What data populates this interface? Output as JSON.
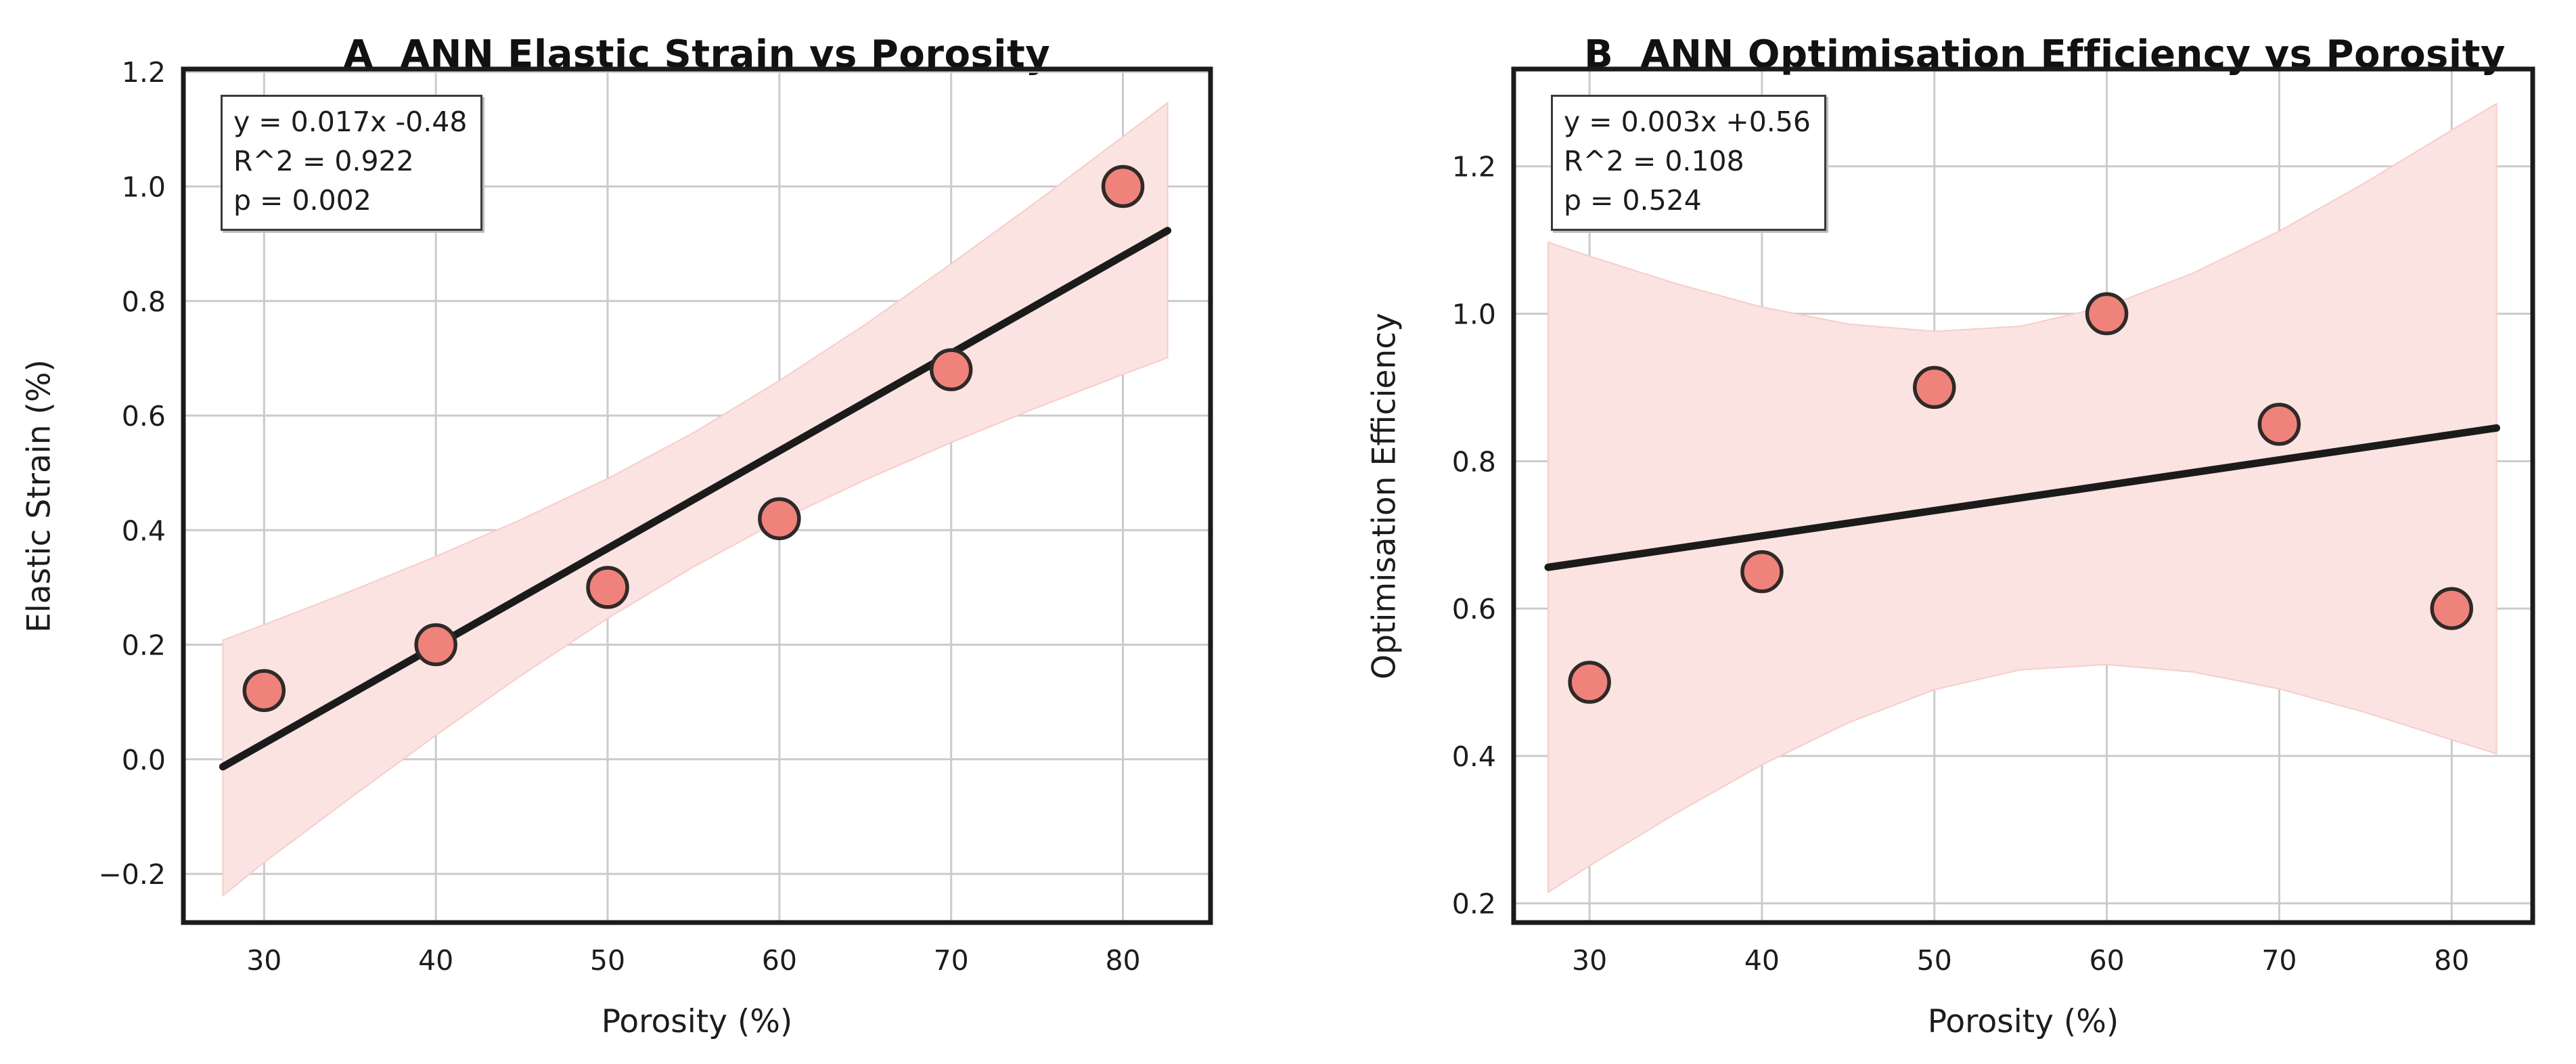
{
  "figure": {
    "background": "#ffffff"
  },
  "colors": {
    "point_fill": "#ef837b",
    "point_edge": "#2f2a28",
    "trend_line": "#1b1b1b",
    "ci_band": "#fbe3e1",
    "grid": "#cbcbcb",
    "frame": "#1b1b1b",
    "text": "#1c1c1c"
  },
  "chart_data": [
    {
      "type": "scatter",
      "panel_label": "A",
      "title": "A  ANN Elastic Strain vs Porosity",
      "xlabel": "Porosity (%)",
      "ylabel": "Elastic Strain (%)",
      "x": [
        30,
        40,
        50,
        60,
        70,
        80
      ],
      "y": [
        0.12,
        0.2,
        0.3,
        0.42,
        0.68,
        1.0
      ],
      "xlim": [
        25.3,
        85.1
      ],
      "ylim": [
        -0.285,
        1.205
      ],
      "xticks": [
        30,
        40,
        50,
        60,
        70,
        80
      ],
      "xtick_labels": [
        "30",
        "40",
        "50",
        "60",
        "70",
        "80"
      ],
      "ytick_values": [
        -0.2,
        0.0,
        0.2,
        0.4,
        0.6,
        0.8,
        1.0,
        1.2
      ],
      "ytick_labels": [
        "−0.2",
        "0.0",
        "0.2",
        "0.4",
        "0.6",
        "0.8",
        "1.0",
        "1.2"
      ],
      "grid": true,
      "legend": "none",
      "fit": {
        "equation": "y = 0.017x -0.48",
        "r2": "R^2 = 0.922",
        "p": "p = 0.002",
        "slope": 0.017,
        "intercept": -0.48
      },
      "trend": {
        "x": [
          27.6,
          82.6
        ],
        "y": [
          -0.013,
          0.923
        ]
      },
      "ci_band": {
        "x": [
          27.6,
          30,
          35,
          40,
          45,
          50,
          55,
          60,
          65,
          70,
          75,
          80,
          82.6
        ],
        "upper": [
          0.208,
          0.235,
          0.293,
          0.354,
          0.419,
          0.49,
          0.57,
          0.661,
          0.759,
          0.865,
          0.974,
          1.087,
          1.146
        ],
        "lower": [
          -0.238,
          -0.18,
          -0.068,
          0.042,
          0.147,
          0.246,
          0.336,
          0.417,
          0.488,
          0.553,
          0.614,
          0.672,
          0.701
        ]
      }
    },
    {
      "type": "scatter",
      "panel_label": "B",
      "title": "B  ANN Optimisation Efficiency vs Porosity",
      "xlabel": "Porosity (%)",
      "ylabel": "Optimisation Efficiency",
      "x": [
        30,
        40,
        50,
        60,
        70,
        80
      ],
      "y": [
        0.5,
        0.65,
        0.9,
        1.0,
        0.85,
        0.6
      ],
      "xlim": [
        25.6,
        84.7
      ],
      "ylim": [
        0.174,
        1.332
      ],
      "xticks": [
        30,
        40,
        50,
        60,
        70,
        80
      ],
      "xtick_labels": [
        "30",
        "40",
        "50",
        "60",
        "70",
        "80"
      ],
      "ytick_values": [
        0.2,
        0.4,
        0.6,
        0.8,
        1.0,
        1.2
      ],
      "ytick_labels": [
        "0.2",
        "0.4",
        "0.6",
        "0.8",
        "1.0",
        "1.2"
      ],
      "grid": true,
      "legend": "none",
      "fit": {
        "equation": "y = 0.003x +0.56",
        "r2": "R^2 = 0.108",
        "p": "p = 0.524",
        "slope": 0.003,
        "intercept": 0.56
      },
      "trend": {
        "x": [
          27.6,
          82.6
        ],
        "y": [
          0.656,
          0.845
        ]
      },
      "ci_band": {
        "x": [
          27.6,
          30,
          35,
          40,
          45,
          50,
          55,
          60,
          65,
          70,
          75,
          80,
          82.6
        ],
        "upper": [
          1.097,
          1.078,
          1.041,
          1.009,
          0.986,
          0.976,
          0.983,
          1.01,
          1.055,
          1.112,
          1.178,
          1.249,
          1.285
        ],
        "lower": [
          0.215,
          0.251,
          0.322,
          0.388,
          0.445,
          0.49,
          0.517,
          0.524,
          0.514,
          0.491,
          0.459,
          0.422,
          0.403
        ]
      }
    }
  ]
}
